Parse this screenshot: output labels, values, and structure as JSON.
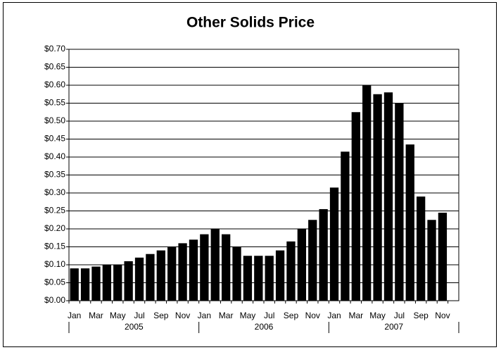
{
  "chart_data": {
    "type": "bar",
    "title": "Other Solids Price",
    "categories": [
      "Jan",
      null,
      "Mar",
      null,
      "May",
      null,
      "Jul",
      null,
      "Sep",
      null,
      "Nov",
      null,
      "Jan",
      null,
      "Mar",
      null,
      "May",
      null,
      "Jul",
      null,
      "Sep",
      null,
      "Nov",
      null,
      "Jan",
      null,
      "Mar",
      null,
      "May",
      null,
      "Jul",
      null,
      "Sep",
      null,
      "Nov",
      null
    ],
    "years": [
      "2005",
      "2006",
      "2007"
    ],
    "values": [
      0.09,
      0.09,
      0.095,
      0.1,
      0.1,
      0.11,
      0.12,
      0.13,
      0.14,
      0.15,
      0.16,
      0.17,
      0.185,
      0.2,
      0.185,
      0.15,
      0.125,
      0.125,
      0.125,
      0.14,
      0.165,
      0.2,
      0.225,
      0.255,
      0.315,
      0.415,
      0.525,
      0.6,
      0.575,
      0.58,
      0.55,
      0.435,
      0.29,
      0.225,
      0.245,
      null
    ],
    "color": "#000000",
    "ylim": [
      0,
      0.7
    ],
    "yticks": [
      {
        "value": 0,
        "label": "$0.00"
      },
      {
        "value": 0.05,
        "label": "$0.05"
      },
      {
        "value": 0.1,
        "label": "$0.10"
      },
      {
        "value": 0.15,
        "label": "$0.15"
      },
      {
        "value": 0.2,
        "label": "$0.20"
      },
      {
        "value": 0.25,
        "label": "$0.25"
      },
      {
        "value": 0.3,
        "label": "$0.30"
      },
      {
        "value": 0.35,
        "label": "$0.35"
      },
      {
        "value": 0.4,
        "label": "$0.40"
      },
      {
        "value": 0.45,
        "label": "$0.45"
      },
      {
        "value": 0.5,
        "label": "$0.50"
      },
      {
        "value": 0.55,
        "label": "$0.55"
      },
      {
        "value": 0.6,
        "label": "$0.60"
      },
      {
        "value": 0.65,
        "label": "$0.65"
      },
      {
        "value": 0.7,
        "label": "$0.70"
      }
    ],
    "grid": true
  }
}
